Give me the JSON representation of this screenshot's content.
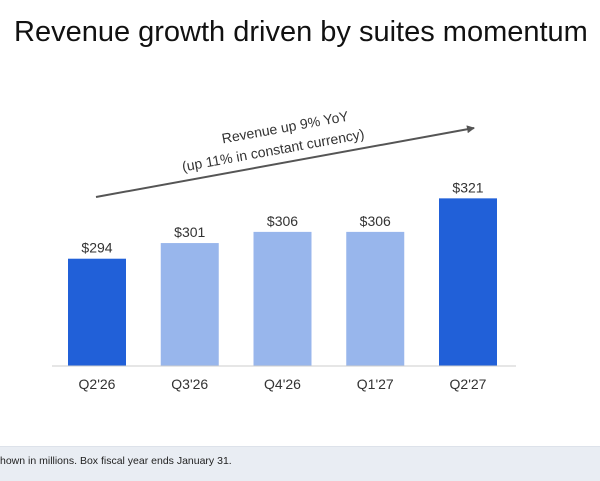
{
  "title": "Revenue growth driven by suites momentum",
  "annotation": {
    "line1": "Revenue up 9% YoY",
    "line2": "(up 11% in constant currency)"
  },
  "footnote": "hown in millions. Box fiscal year ends January 31.",
  "colors": {
    "highlight": "#2160d8",
    "normal": "#98b6ec",
    "axis": "#cccccc",
    "arrow": "#555555",
    "text": "#333333"
  },
  "chart_data": {
    "type": "bar",
    "categories": [
      "Q2'26",
      "Q3'26",
      "Q4'26",
      "Q1'27",
      "Q2'27"
    ],
    "values": [
      294,
      301,
      306,
      306,
      321
    ],
    "data_labels": [
      "$294",
      "$301",
      "$306",
      "$306",
      "$321"
    ],
    "highlighted": [
      true,
      false,
      false,
      false,
      true
    ],
    "ylim": [
      246,
      331
    ],
    "grid": false,
    "legend": "none"
  }
}
